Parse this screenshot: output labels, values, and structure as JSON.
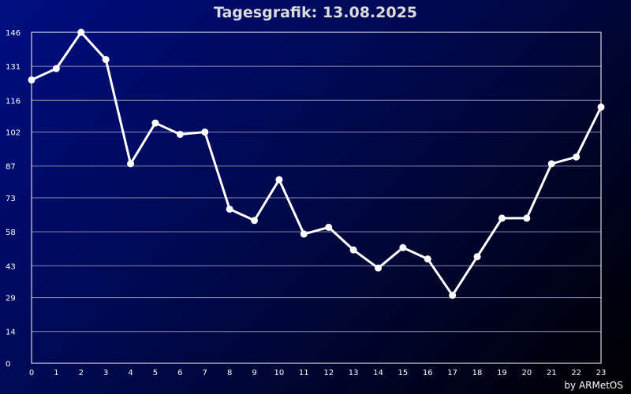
{
  "title": "Tagesgrafik: 13.08.2025",
  "credit": "by ARMetOS",
  "colors": {
    "line": "#ffffff",
    "marker": "#ffffff",
    "grid": "#8c8cb4",
    "frame": "#ffffff"
  },
  "chart_data": {
    "type": "line",
    "title": "Tagesgrafik: 13.08.2025",
    "x": [
      0,
      1,
      2,
      3,
      4,
      5,
      6,
      7,
      8,
      9,
      10,
      11,
      12,
      13,
      14,
      15,
      16,
      17,
      18,
      19,
      20,
      21,
      22,
      23
    ],
    "series": [
      {
        "values": [
          125,
          130,
          146,
          134,
          88,
          106,
          101,
          102,
          68,
          63,
          81,
          57,
          60,
          50,
          42,
          51,
          46,
          30,
          47,
          64,
          64,
          88,
          91,
          113
        ]
      }
    ],
    "xlim": [
      0,
      23
    ],
    "ylim": [
      0,
      146
    ],
    "yticks": [
      0,
      14,
      29,
      43,
      58,
      73,
      87,
      102,
      116,
      131,
      146
    ],
    "grid": true
  }
}
